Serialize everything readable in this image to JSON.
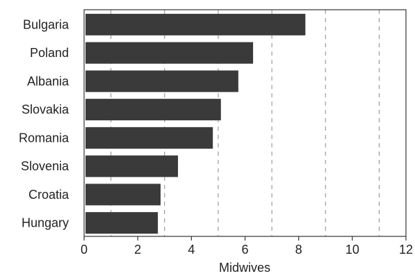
{
  "chart_data": {
    "type": "bar",
    "orientation": "horizontal",
    "categories": [
      "Bulgaria",
      "Poland",
      "Albania",
      "Slovakia",
      "Romania",
      "Slovenia",
      "Croatia",
      "Hungary"
    ],
    "values": [
      8.25,
      6.3,
      5.75,
      5.1,
      4.8,
      3.5,
      2.85,
      2.75
    ],
    "xlabel": "Midwives",
    "ylabel": "",
    "xlim": [
      0,
      12
    ],
    "xticks": [
      "0",
      "2",
      "4",
      "6",
      "8",
      "10",
      "12"
    ],
    "grid": "vertical dashed at odd values",
    "bar_color": "#3a3a3a",
    "grid_color": "#888888"
  }
}
